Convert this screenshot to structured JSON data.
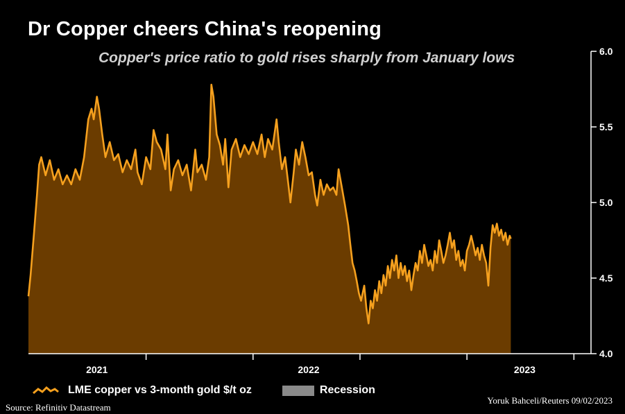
{
  "header": {
    "title": "Dr Copper cheers China's reopening",
    "subtitle": "Copper's price ratio to gold rises sharply from January lows"
  },
  "legend": {
    "series_label": "LME copper vs 3-month gold $/t oz",
    "recession_label": "Recession"
  },
  "footer": {
    "source": "Source: Refinitiv Datastream",
    "credit": "Yoruk Bahceli/Reuters 09/02/2023"
  },
  "colors": {
    "line": "#f5a01e",
    "area": "#6b3c00",
    "recession": "#8a8a8a",
    "axis": "#ffffff"
  },
  "chart_data": {
    "type": "area",
    "title": "Dr Copper cheers China's reopening",
    "subtitle": "Copper's price ratio to gold rises sharply from January lows",
    "xlabel": "",
    "ylabel": "",
    "x_range": [
      2020.45,
      2023.08
    ],
    "ylim": [
      4.0,
      6.0
    ],
    "y_ticks": [
      4.0,
      4.5,
      5.0,
      5.5,
      6.0
    ],
    "y_tick_labels": [
      "4.0",
      "4.5",
      "5.0",
      "5.5",
      "6.0"
    ],
    "x_ticks": [
      2021.0,
      2021.5,
      2022.0,
      2022.5,
      2023.0
    ],
    "x_tick_labels": [
      {
        "at": 2020.77,
        "label": "2021"
      },
      {
        "at": 2021.76,
        "label": "2022"
      },
      {
        "at": 2022.77,
        "label": "2023"
      }
    ],
    "legend_position": "bottom",
    "series": [
      {
        "name": "LME copper vs 3-month gold $/t oz",
        "points": [
          [
            2020.45,
            4.38
          ],
          [
            2020.46,
            4.52
          ],
          [
            2020.475,
            4.78
          ],
          [
            2020.49,
            5.05
          ],
          [
            2020.5,
            5.25
          ],
          [
            2020.51,
            5.3
          ],
          [
            2020.53,
            5.18
          ],
          [
            2020.55,
            5.28
          ],
          [
            2020.57,
            5.15
          ],
          [
            2020.59,
            5.22
          ],
          [
            2020.61,
            5.12
          ],
          [
            2020.63,
            5.18
          ],
          [
            2020.65,
            5.12
          ],
          [
            2020.67,
            5.22
          ],
          [
            2020.69,
            5.15
          ],
          [
            2020.71,
            5.3
          ],
          [
            2020.73,
            5.55
          ],
          [
            2020.745,
            5.62
          ],
          [
            2020.755,
            5.55
          ],
          [
            2020.77,
            5.7
          ],
          [
            2020.78,
            5.62
          ],
          [
            2020.795,
            5.45
          ],
          [
            2020.81,
            5.3
          ],
          [
            2020.83,
            5.4
          ],
          [
            2020.85,
            5.28
          ],
          [
            2020.87,
            5.32
          ],
          [
            2020.89,
            5.2
          ],
          [
            2020.91,
            5.28
          ],
          [
            2020.93,
            5.22
          ],
          [
            2020.95,
            5.35
          ],
          [
            2020.96,
            5.2
          ],
          [
            2020.98,
            5.12
          ],
          [
            2021.0,
            5.3
          ],
          [
            2021.02,
            5.22
          ],
          [
            2021.035,
            5.48
          ],
          [
            2021.05,
            5.4
          ],
          [
            2021.07,
            5.35
          ],
          [
            2021.09,
            5.22
          ],
          [
            2021.1,
            5.45
          ],
          [
            2021.115,
            5.08
          ],
          [
            2021.13,
            5.22
          ],
          [
            2021.15,
            5.28
          ],
          [
            2021.17,
            5.18
          ],
          [
            2021.19,
            5.25
          ],
          [
            2021.21,
            5.08
          ],
          [
            2021.23,
            5.35
          ],
          [
            2021.24,
            5.2
          ],
          [
            2021.26,
            5.25
          ],
          [
            2021.28,
            5.15
          ],
          [
            2021.295,
            5.3
          ],
          [
            2021.305,
            5.78
          ],
          [
            2021.315,
            5.7
          ],
          [
            2021.33,
            5.45
          ],
          [
            2021.345,
            5.38
          ],
          [
            2021.36,
            5.25
          ],
          [
            2021.37,
            5.42
          ],
          [
            2021.385,
            5.1
          ],
          [
            2021.4,
            5.35
          ],
          [
            2021.42,
            5.42
          ],
          [
            2021.44,
            5.3
          ],
          [
            2021.46,
            5.38
          ],
          [
            2021.48,
            5.32
          ],
          [
            2021.5,
            5.4
          ],
          [
            2021.52,
            5.32
          ],
          [
            2021.54,
            5.45
          ],
          [
            2021.555,
            5.3
          ],
          [
            2021.57,
            5.42
          ],
          [
            2021.59,
            5.35
          ],
          [
            2021.61,
            5.55
          ],
          [
            2021.62,
            5.4
          ],
          [
            2021.635,
            5.22
          ],
          [
            2021.65,
            5.3
          ],
          [
            2021.665,
            5.12
          ],
          [
            2021.675,
            5.0
          ],
          [
            2021.69,
            5.2
          ],
          [
            2021.7,
            5.35
          ],
          [
            2021.715,
            5.25
          ],
          [
            2021.73,
            5.4
          ],
          [
            2021.745,
            5.3
          ],
          [
            2021.76,
            5.18
          ],
          [
            2021.775,
            5.2
          ],
          [
            2021.79,
            5.05
          ],
          [
            2021.8,
            4.98
          ],
          [
            2021.815,
            5.15
          ],
          [
            2021.83,
            5.05
          ],
          [
            2021.845,
            5.12
          ],
          [
            2021.86,
            5.08
          ],
          [
            2021.875,
            5.1
          ],
          [
            2021.89,
            5.05
          ],
          [
            2021.9,
            5.22
          ],
          [
            2021.915,
            5.1
          ],
          [
            2021.93,
            4.98
          ],
          [
            2021.945,
            4.85
          ],
          [
            2021.955,
            4.72
          ],
          [
            2021.965,
            4.6
          ],
          [
            2021.975,
            4.55
          ],
          [
            2021.985,
            4.48
          ],
          [
            2021.995,
            4.4
          ],
          [
            2022.005,
            4.35
          ],
          [
            2022.02,
            4.45
          ],
          [
            2022.03,
            4.3
          ],
          [
            2022.04,
            4.2
          ],
          [
            2022.05,
            4.35
          ],
          [
            2022.06,
            4.3
          ],
          [
            2022.07,
            4.42
          ],
          [
            2022.08,
            4.35
          ],
          [
            2022.09,
            4.48
          ],
          [
            2022.1,
            4.4
          ],
          [
            2022.11,
            4.52
          ],
          [
            2022.12,
            4.45
          ],
          [
            2022.13,
            4.58
          ],
          [
            2022.14,
            4.5
          ],
          [
            2022.15,
            4.62
          ],
          [
            2022.16,
            4.55
          ],
          [
            2022.17,
            4.65
          ],
          [
            2022.18,
            4.5
          ],
          [
            2022.19,
            4.6
          ],
          [
            2022.2,
            4.52
          ],
          [
            2022.21,
            4.58
          ],
          [
            2022.22,
            4.48
          ],
          [
            2022.23,
            4.55
          ],
          [
            2022.24,
            4.42
          ],
          [
            2022.25,
            4.52
          ],
          [
            2022.26,
            4.6
          ],
          [
            2022.27,
            4.55
          ],
          [
            2022.28,
            4.68
          ],
          [
            2022.29,
            4.6
          ],
          [
            2022.3,
            4.72
          ],
          [
            2022.31,
            4.65
          ],
          [
            2022.32,
            4.58
          ],
          [
            2022.33,
            4.62
          ],
          [
            2022.34,
            4.55
          ],
          [
            2022.35,
            4.68
          ],
          [
            2022.36,
            4.6
          ],
          [
            2022.37,
            4.75
          ],
          [
            2022.38,
            4.68
          ],
          [
            2022.39,
            4.6
          ],
          [
            2022.4,
            4.65
          ],
          [
            2022.41,
            4.72
          ],
          [
            2022.42,
            4.8
          ],
          [
            2022.43,
            4.7
          ],
          [
            2022.44,
            4.75
          ],
          [
            2022.45,
            4.62
          ],
          [
            2022.46,
            4.68
          ],
          [
            2022.47,
            4.58
          ],
          [
            2022.48,
            4.62
          ],
          [
            2022.49,
            4.55
          ],
          [
            2022.5,
            4.68
          ],
          [
            2022.51,
            4.72
          ],
          [
            2022.52,
            4.78
          ],
          [
            2022.53,
            4.72
          ],
          [
            2022.54,
            4.65
          ],
          [
            2022.55,
            4.7
          ],
          [
            2022.56,
            4.62
          ],
          [
            2022.57,
            4.72
          ],
          [
            2022.58,
            4.65
          ],
          [
            2022.59,
            4.6
          ],
          [
            2022.6,
            4.45
          ],
          [
            2022.61,
            4.7
          ],
          [
            2022.62,
            4.85
          ],
          [
            2022.63,
            4.8
          ],
          [
            2022.64,
            4.86
          ],
          [
            2022.65,
            4.78
          ],
          [
            2022.66,
            4.82
          ],
          [
            2022.67,
            4.75
          ],
          [
            2022.68,
            4.8
          ],
          [
            2022.69,
            4.72
          ],
          [
            2022.7,
            4.78
          ],
          [
            2022.705,
            4.76
          ]
        ]
      }
    ]
  }
}
